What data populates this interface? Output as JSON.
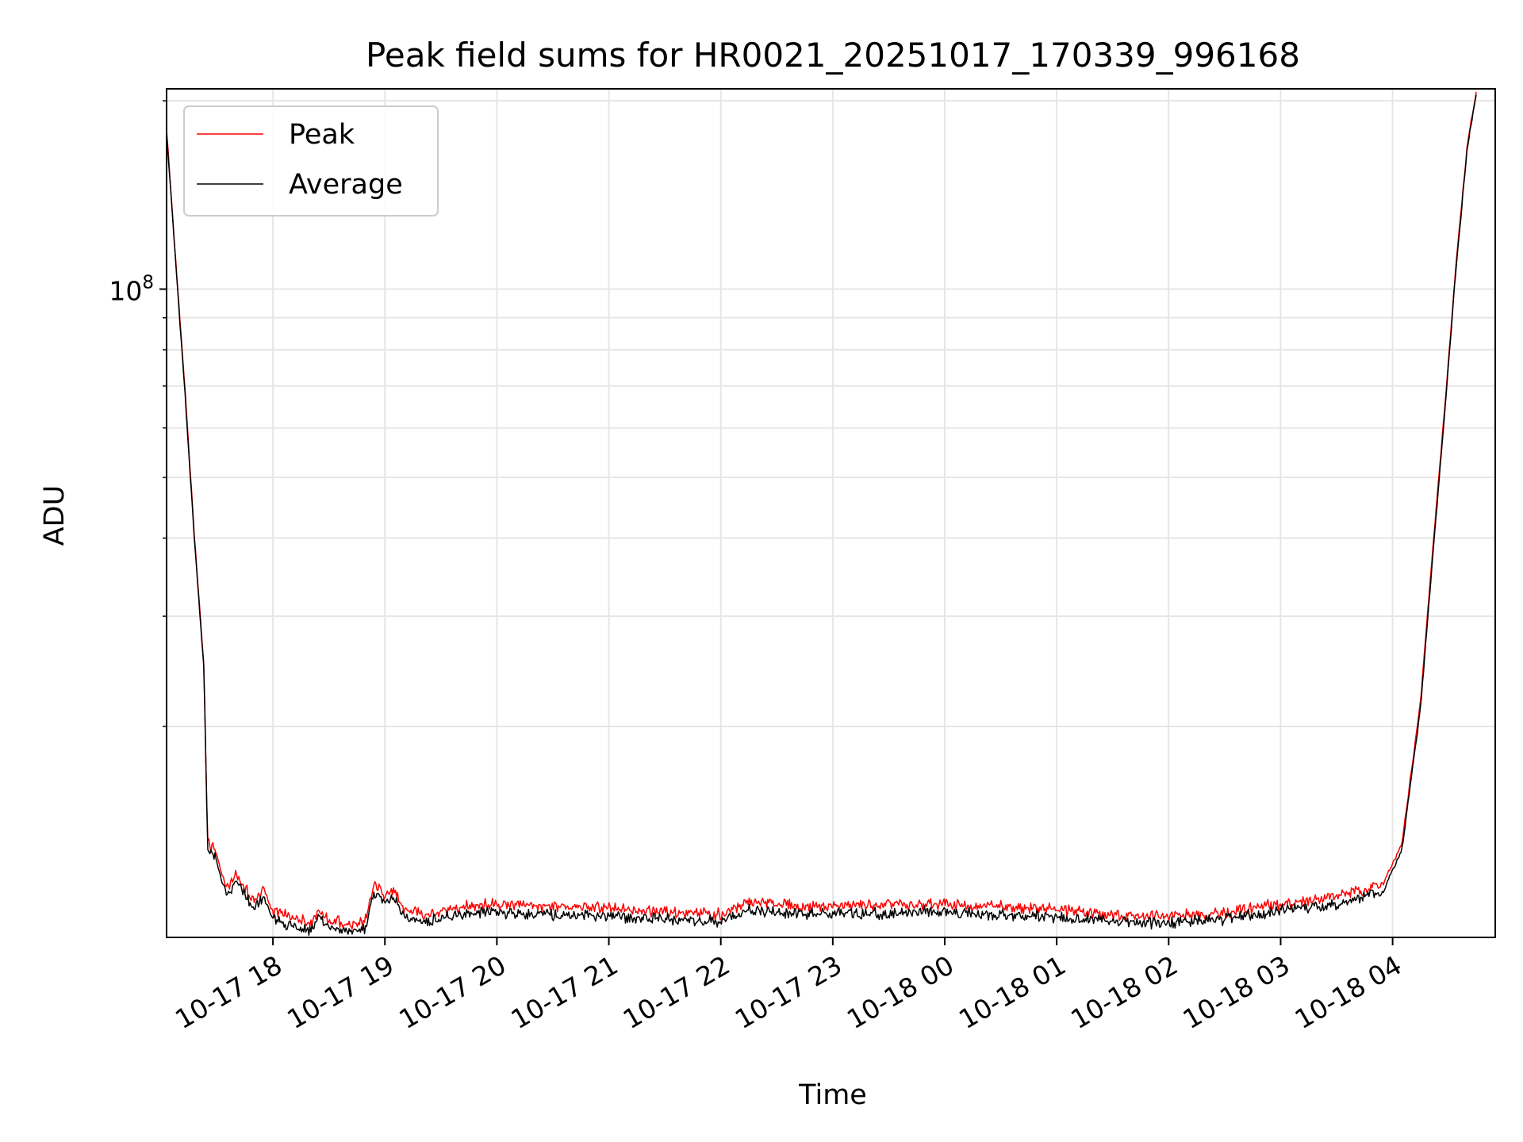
{
  "chart_data": {
    "type": "line",
    "title": "Peak field sums for HR0021_20251017_170339_996168",
    "xlabel": "Time",
    "ylabel": "ADU",
    "y_scale": "log",
    "grid": true,
    "legend_placement": "top-left",
    "x_range": [
      "2025-10-17 17:03",
      "2025-10-18 04:55"
    ],
    "ylim": [
      9200000,
      209000000
    ],
    "y_major_ticks": [
      {
        "value": 100000000,
        "label": "10^8"
      }
    ],
    "y_minor_ticks": [
      20000000,
      30000000,
      40000000,
      50000000,
      60000000,
      70000000,
      80000000,
      90000000,
      200000000
    ],
    "x_ticks": [
      {
        "value": "2025-10-17 18:00",
        "label": "10-17 18"
      },
      {
        "value": "2025-10-17 19:00",
        "label": "10-17 19"
      },
      {
        "value": "2025-10-17 20:00",
        "label": "10-17 20"
      },
      {
        "value": "2025-10-17 21:00",
        "label": "10-17 21"
      },
      {
        "value": "2025-10-17 22:00",
        "label": "10-17 22"
      },
      {
        "value": "2025-10-17 23:00",
        "label": "10-17 23"
      },
      {
        "value": "2025-10-18 00:00",
        "label": "10-18 00"
      },
      {
        "value": "2025-10-18 01:00",
        "label": "10-18 01"
      },
      {
        "value": "2025-10-18 02:00",
        "label": "10-18 02"
      },
      {
        "value": "2025-10-18 03:00",
        "label": "10-18 03"
      },
      {
        "value": "2025-10-18 04:00",
        "label": "10-18 04"
      }
    ],
    "series": [
      {
        "name": "Peak",
        "color": "#ff0000",
        "points": [
          [
            "2025-10-17 17:03",
            180000000
          ],
          [
            "2025-10-17 17:08",
            110000000
          ],
          [
            "2025-10-17 17:13",
            68000000
          ],
          [
            "2025-10-17 17:18",
            40000000
          ],
          [
            "2025-10-17 17:23",
            25000000
          ],
          [
            "2025-10-17 17:25",
            13000000
          ],
          [
            "2025-10-17 17:29",
            12700000
          ],
          [
            "2025-10-17 17:33",
            11500000
          ],
          [
            "2025-10-17 17:36",
            11000000
          ],
          [
            "2025-10-17 17:40",
            11600000
          ],
          [
            "2025-10-17 17:45",
            11000000
          ],
          [
            "2025-10-17 17:50",
            10500000
          ],
          [
            "2025-10-17 17:55",
            11000000
          ],
          [
            "2025-10-17 18:00",
            10100000
          ],
          [
            "2025-10-17 18:10",
            9900000
          ],
          [
            "2025-10-17 18:20",
            9700000
          ],
          [
            "2025-10-17 18:25",
            10200000
          ],
          [
            "2025-10-17 18:30",
            9800000
          ],
          [
            "2025-10-17 18:40",
            9650000
          ],
          [
            "2025-10-17 18:50",
            9800000
          ],
          [
            "2025-10-17 18:52",
            10600000
          ],
          [
            "2025-10-17 18:55",
            11200000
          ],
          [
            "2025-10-17 19:00",
            10800000
          ],
          [
            "2025-10-17 19:05",
            10900000
          ],
          [
            "2025-10-17 19:10",
            10200000
          ],
          [
            "2025-10-17 19:20",
            10000000
          ],
          [
            "2025-10-17 19:40",
            10300000
          ],
          [
            "2025-10-17 20:00",
            10400000
          ],
          [
            "2025-10-17 20:30",
            10300000
          ],
          [
            "2025-10-17 21:00",
            10250000
          ],
          [
            "2025-10-17 21:30",
            10100000
          ],
          [
            "2025-10-17 22:00",
            10000000
          ],
          [
            "2025-10-17 22:15",
            10500000
          ],
          [
            "2025-10-17 22:45",
            10300000
          ],
          [
            "2025-10-17 23:15",
            10350000
          ],
          [
            "2025-10-18 00:00",
            10400000
          ],
          [
            "2025-10-18 00:30",
            10300000
          ],
          [
            "2025-10-18 01:00",
            10200000
          ],
          [
            "2025-10-18 01:30",
            10000000
          ],
          [
            "2025-10-18 02:00",
            9950000
          ],
          [
            "2025-10-18 02:30",
            10100000
          ],
          [
            "2025-10-18 03:00",
            10400000
          ],
          [
            "2025-10-18 03:30",
            10700000
          ],
          [
            "2025-10-18 03:55",
            11200000
          ],
          [
            "2025-10-18 04:05",
            13000000
          ],
          [
            "2025-10-18 04:15",
            22000000
          ],
          [
            "2025-10-18 04:22",
            40000000
          ],
          [
            "2025-10-18 04:28",
            65000000
          ],
          [
            "2025-10-18 04:34",
            110000000
          ],
          [
            "2025-10-18 04:40",
            170000000
          ],
          [
            "2025-10-18 04:45",
            209000000
          ]
        ]
      },
      {
        "name": "Average",
        "color": "#000000",
        "points": [
          [
            "2025-10-17 17:03",
            178000000
          ],
          [
            "2025-10-17 17:08",
            109000000
          ],
          [
            "2025-10-17 17:13",
            67000000
          ],
          [
            "2025-10-17 17:18",
            39500000
          ],
          [
            "2025-10-17 17:23",
            24700000
          ],
          [
            "2025-10-17 17:25",
            12800000
          ],
          [
            "2025-10-17 17:29",
            12400000
          ],
          [
            "2025-10-17 17:33",
            11200000
          ],
          [
            "2025-10-17 17:36",
            10700000
          ],
          [
            "2025-10-17 17:40",
            11300000
          ],
          [
            "2025-10-17 17:45",
            10700000
          ],
          [
            "2025-10-17 17:50",
            10200000
          ],
          [
            "2025-10-17 17:55",
            10700000
          ],
          [
            "2025-10-17 18:00",
            9800000
          ],
          [
            "2025-10-17 18:10",
            9600000
          ],
          [
            "2025-10-17 18:20",
            9450000
          ],
          [
            "2025-10-17 18:25",
            9950000
          ],
          [
            "2025-10-17 18:30",
            9550000
          ],
          [
            "2025-10-17 18:40",
            9400000
          ],
          [
            "2025-10-17 18:50",
            9550000
          ],
          [
            "2025-10-17 18:52",
            10300000
          ],
          [
            "2025-10-17 18:55",
            10900000
          ],
          [
            "2025-10-17 19:00",
            10500000
          ],
          [
            "2025-10-17 19:05",
            10600000
          ],
          [
            "2025-10-17 19:10",
            9950000
          ],
          [
            "2025-10-17 19:20",
            9750000
          ],
          [
            "2025-10-17 19:40",
            10000000
          ],
          [
            "2025-10-17 20:00",
            10100000
          ],
          [
            "2025-10-17 20:30",
            10000000
          ],
          [
            "2025-10-17 21:00",
            9950000
          ],
          [
            "2025-10-17 21:30",
            9850000
          ],
          [
            "2025-10-17 22:00",
            9750000
          ],
          [
            "2025-10-17 22:15",
            10200000
          ],
          [
            "2025-10-17 22:45",
            10000000
          ],
          [
            "2025-10-17 23:15",
            10050000
          ],
          [
            "2025-10-18 00:00",
            10100000
          ],
          [
            "2025-10-18 00:30",
            10000000
          ],
          [
            "2025-10-18 01:00",
            9900000
          ],
          [
            "2025-10-18 01:30",
            9750000
          ],
          [
            "2025-10-18 02:00",
            9700000
          ],
          [
            "2025-10-18 02:30",
            9850000
          ],
          [
            "2025-10-18 03:00",
            10150000
          ],
          [
            "2025-10-18 03:30",
            10400000
          ],
          [
            "2025-10-18 03:55",
            10900000
          ],
          [
            "2025-10-18 04:05",
            12700000
          ],
          [
            "2025-10-18 04:15",
            21500000
          ],
          [
            "2025-10-18 04:22",
            39000000
          ],
          [
            "2025-10-18 04:28",
            64000000
          ],
          [
            "2025-10-18 04:34",
            108000000
          ],
          [
            "2025-10-18 04:40",
            168000000
          ],
          [
            "2025-10-18 04:45",
            207000000
          ]
        ]
      }
    ]
  }
}
